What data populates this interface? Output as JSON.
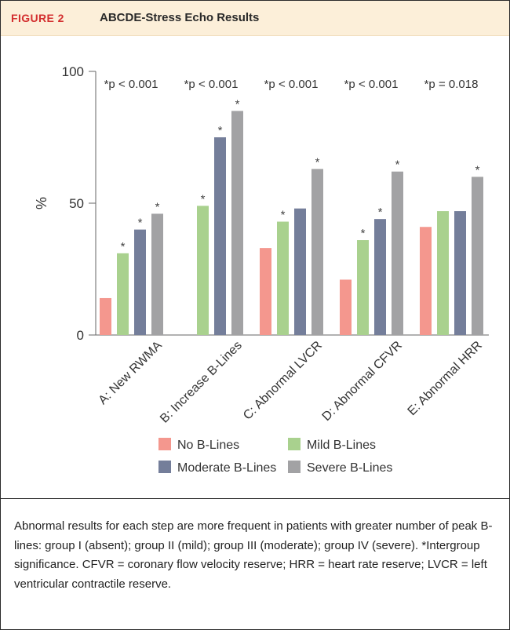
{
  "figure": {
    "label": "FIGURE 2",
    "title": "ABCDE-Stress Echo Results"
  },
  "caption": "Abnormal results for each step are more frequent in patients with greater number of peak B-lines: group I (absent); group II (mild); group III (moderate); group IV (severe). *Intergroup significance. CFVR = coronary flow velocity reserve; HRR = heart rate reserve; LVCR = left ventricular contractile reserve.",
  "chart_data": {
    "type": "bar",
    "title": "ABCDE-Stress Echo Results",
    "xlabel": "",
    "ylabel": "%",
    "ylim": [
      0,
      100
    ],
    "yticks": [
      0,
      50,
      100
    ],
    "grid": false,
    "legend_placement": "bottom",
    "categories": [
      "A: New RWMA",
      "B: Increase B-Lines",
      "C: Abnormal LVCR",
      "D: Abnormal CFVR",
      "E: Abnormal HRR"
    ],
    "p_values": [
      "*p < 0.001",
      "*p < 0.001",
      "*p < 0.001",
      "*p < 0.001",
      "*p = 0.018"
    ],
    "significance_marker": "*",
    "series": [
      {
        "name": "No B-Lines",
        "color": "#f4978e",
        "values": [
          14,
          0,
          33,
          21,
          41
        ],
        "significant": [
          false,
          false,
          false,
          false,
          false
        ]
      },
      {
        "name": "Mild B-Lines",
        "color": "#a9d18e",
        "values": [
          31,
          49,
          43,
          36,
          47
        ],
        "significant": [
          true,
          true,
          true,
          true,
          false
        ]
      },
      {
        "name": "Moderate B-Lines",
        "color": "#747e9a",
        "values": [
          40,
          75,
          48,
          44,
          47
        ],
        "significant": [
          true,
          true,
          false,
          true,
          false
        ]
      },
      {
        "name": "Severe B-Lines",
        "color": "#a2a2a4",
        "values": [
          46,
          85,
          63,
          62,
          60
        ],
        "significant": [
          true,
          true,
          true,
          true,
          true
        ]
      }
    ]
  }
}
